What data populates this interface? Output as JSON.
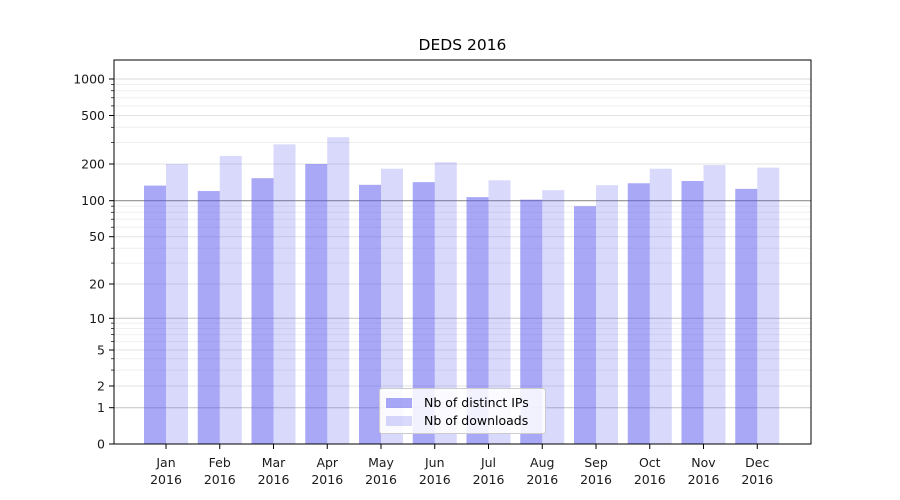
{
  "title": "DEDS 2016",
  "colors": {
    "bar_ips": "rgba(82,82,240,0.5)",
    "bar_downloads": "rgba(82,82,240,0.22)",
    "grid_100": "#909090",
    "grid_pow10": "#c2c2c2",
    "grid_1000": "#d8d8d8",
    "grid_labeled": "#e3e3e3",
    "grid_minor": "#efefef",
    "spine": "#000000",
    "tick_text": "#1a1a1a"
  },
  "chart_data": {
    "type": "bar",
    "title": "DEDS 2016",
    "categories": [
      "Jan",
      "Feb",
      "Mar",
      "Apr",
      "May",
      "Jun",
      "Jul",
      "Aug",
      "Sep",
      "Oct",
      "Nov",
      "Dec"
    ],
    "x_tick_second_line": "2016",
    "series": [
      {
        "name": "Nb of distinct IPs",
        "values": [
          133,
          120,
          153,
          200,
          135,
          142,
          107,
          102,
          90,
          139,
          145,
          125
        ]
      },
      {
        "name": "Nb of downloads",
        "values": [
          200,
          233,
          290,
          332,
          183,
          207,
          147,
          122,
          134,
          183,
          196,
          187
        ]
      }
    ],
    "xlabel": "",
    "ylabel": "",
    "yscale": "symlog",
    "y_tick_labels": [
      "0",
      "1",
      "2",
      "5",
      "10",
      "20",
      "50",
      "100",
      "200",
      "500",
      "1000"
    ],
    "y_tick_values": [
      0,
      1,
      2,
      5,
      10,
      20,
      50,
      100,
      200,
      500,
      1000
    ],
    "ylim": [
      0,
      1450
    ],
    "grid": "on",
    "legend_position": "lower center"
  }
}
